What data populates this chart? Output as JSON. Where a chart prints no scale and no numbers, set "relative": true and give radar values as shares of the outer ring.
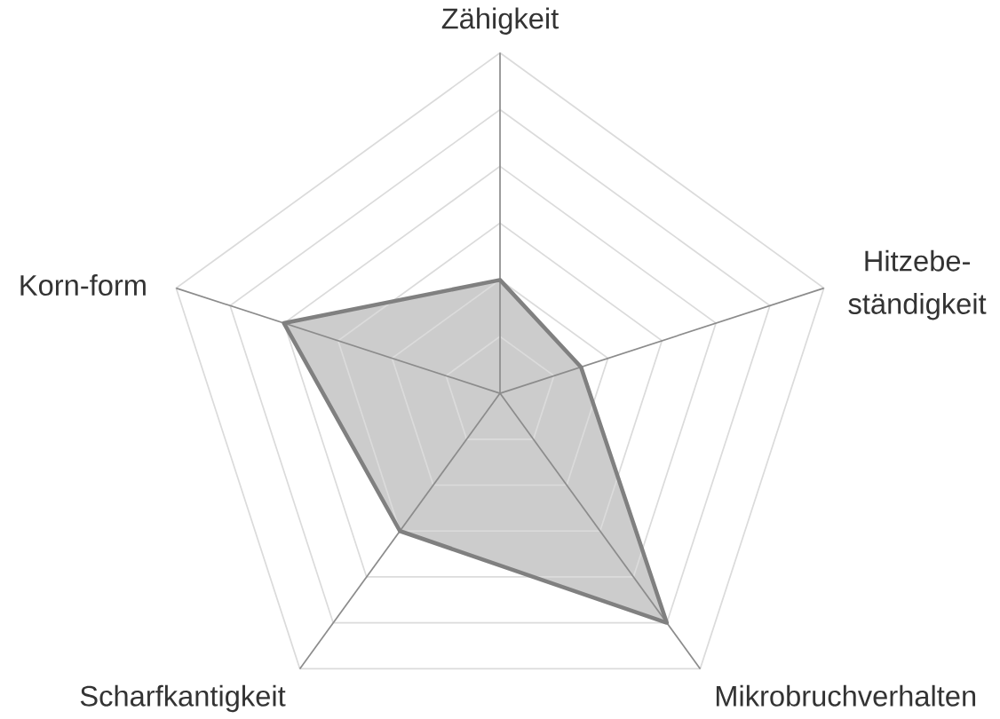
{
  "chart_data": {
    "type": "radar",
    "relative": true,
    "grid": true,
    "categories": [
      "Zähigkeit",
      "Hitzebe-ständigkeit",
      "Mikrobruchverhalten",
      "Scharfkantigkeit",
      "Korn-form"
    ],
    "series": [
      {
        "color": "#808080",
        "values": [
          0.333,
          0.25,
          0.833,
          0.5,
          0.667
        ]
      }
    ]
  }
}
